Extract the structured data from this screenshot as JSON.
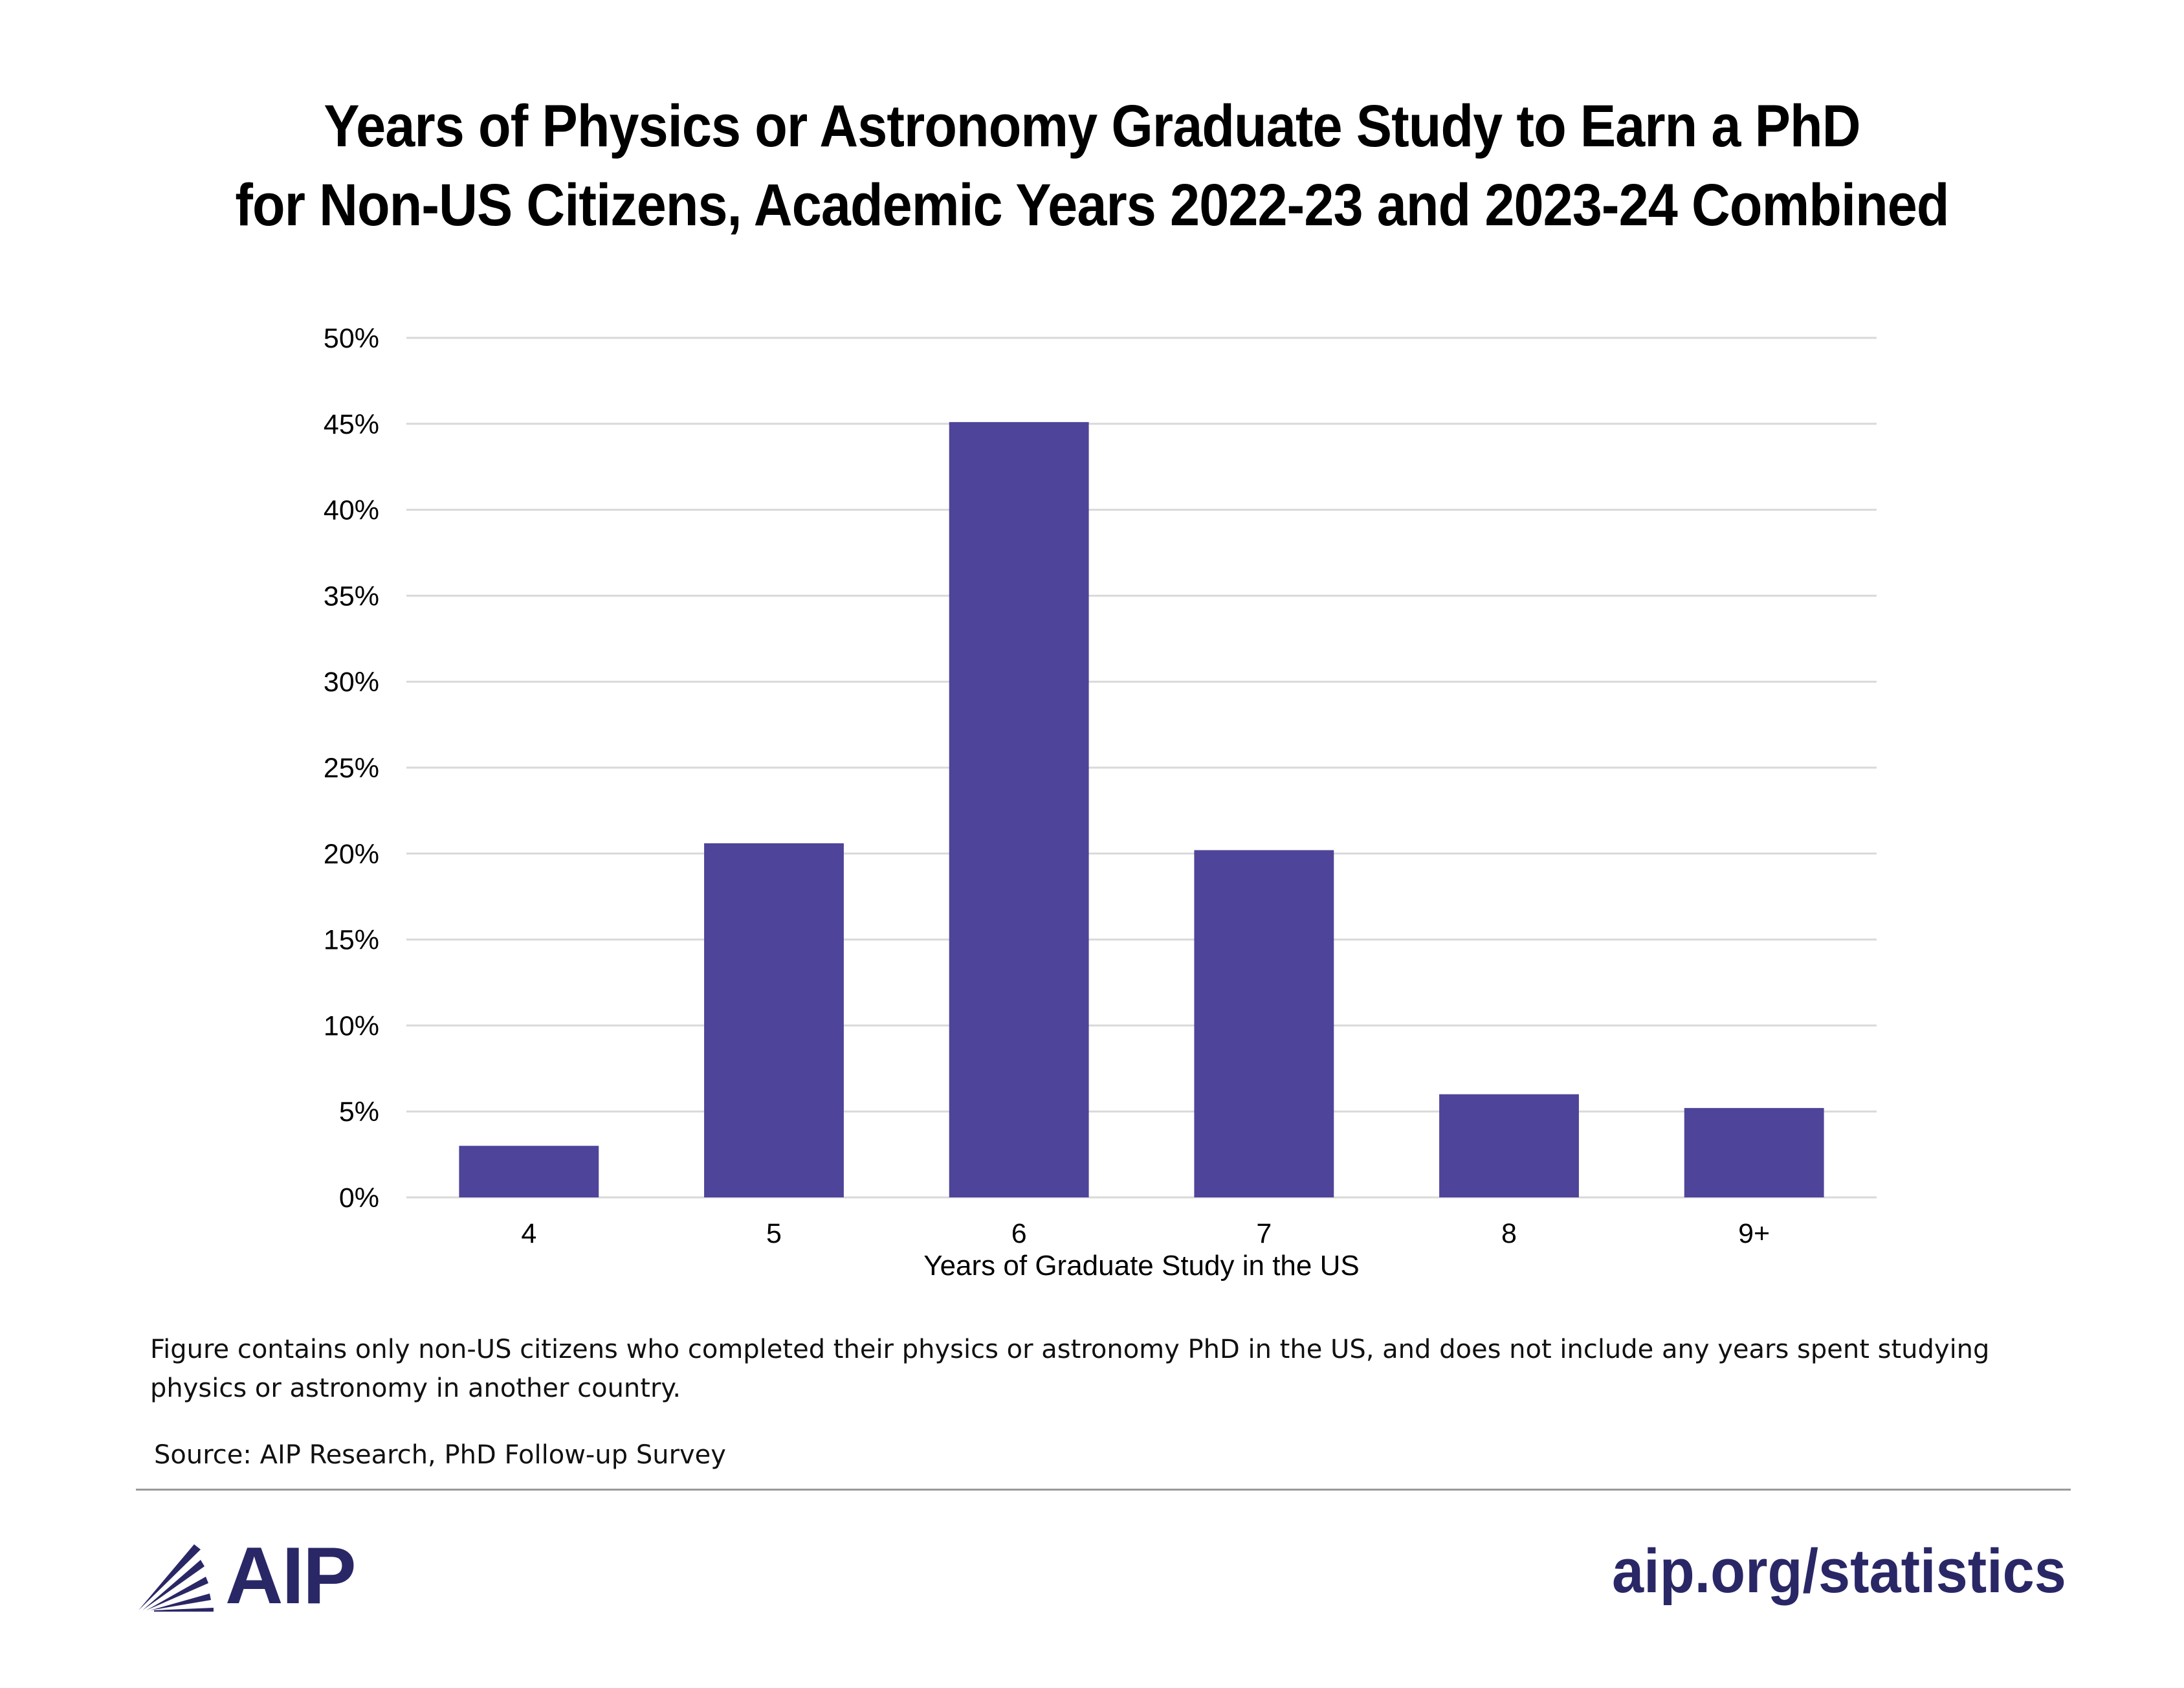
{
  "title": {
    "line1": "Years of Physics or Astronomy Graduate Study to Earn a PhD",
    "line2": "for Non-US Citizens, Academic Years 2022-23 and 2023-24 Combined"
  },
  "chart_data": {
    "type": "bar",
    "categories": [
      "4",
      "5",
      "6",
      "7",
      "8",
      "9+"
    ],
    "values": [
      3.0,
      20.6,
      45.1,
      20.2,
      6.0,
      5.2
    ],
    "ylim": [
      0,
      50
    ],
    "yticks": [
      0,
      5,
      10,
      15,
      20,
      25,
      30,
      35,
      40,
      45,
      50
    ],
    "ytick_suffix": "%",
    "xlabel": "Years of Graduate Study in the US",
    "ylabel": "",
    "grid": true,
    "bar_color": "#4e4499"
  },
  "footnote": {
    "line1": "Figure contains only non-US citizens who completed their physics or astronomy PhD in the US, and does not include any years spent studying",
    "line2": "physics or astronomy in another country."
  },
  "source": "Source: AIP Research, PhD Follow-up Survey",
  "brand": {
    "logo_text": "AIP",
    "logo_icon": "aip-rays-icon",
    "url": "aip.org/statistics",
    "color": "#2a2767"
  }
}
